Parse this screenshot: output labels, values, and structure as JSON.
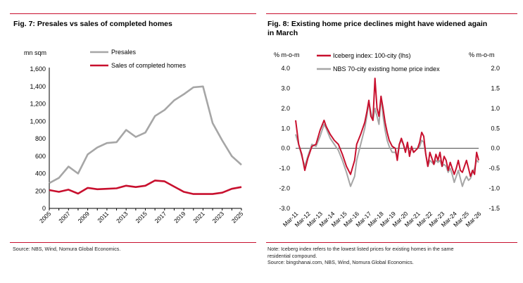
{
  "left": {
    "title": "Fig. 7: Presales vs sales of completed homes",
    "source": "Source: NBS, Wind, Nomura Global Economics."
  },
  "right": {
    "title_line1": "Fig. 8: Existing home price declines might have widened again",
    "title_line2": "in March",
    "note_line1": "Note: Iceberg index refers to the lowest listed prices for existing homes in the same",
    "note_line2": "residential compound.",
    "source": "Source: bingshanai.com, NBS, Wind, Nomura Global Economics."
  },
  "colors": {
    "red": "#c8102e",
    "gray": "#a6a6a6",
    "axis": "#000000"
  },
  "chart_data": [
    {
      "type": "line",
      "ylabel": "mn sqm",
      "ylim": [
        0,
        1600
      ],
      "yticks": [
        0,
        200,
        400,
        600,
        800,
        1000,
        1200,
        1400,
        1600
      ],
      "ytick_labels": [
        "0",
        "200",
        "400",
        "600",
        "800",
        "1,000",
        "1,200",
        "1,400",
        "1,600"
      ],
      "xlim": [
        2005,
        2025
      ],
      "xtick_labels": [
        "2005",
        "2007",
        "2009",
        "2011",
        "2013",
        "2015",
        "2017",
        "2019",
        "2021",
        "2023",
        "2025"
      ],
      "legend_position": "top-center",
      "series": [
        {
          "name": "Presales",
          "color": "#a6a6a6",
          "x": [
            2005,
            2006,
            2007,
            2008,
            2009,
            2010,
            2011,
            2012,
            2013,
            2014,
            2015,
            2016,
            2017,
            2018,
            2019,
            2020,
            2021,
            2022,
            2023,
            2024,
            2025
          ],
          "values": [
            290,
            350,
            480,
            400,
            620,
            700,
            750,
            760,
            900,
            820,
            870,
            1060,
            1130,
            1240,
            1310,
            1390,
            1400,
            980,
            780,
            600,
            500
          ]
        },
        {
          "name": "Sales of completed homes",
          "color": "#c8102e",
          "x": [
            2005,
            2006,
            2007,
            2008,
            2009,
            2010,
            2011,
            2012,
            2013,
            2014,
            2015,
            2016,
            2017,
            2018,
            2019,
            2020,
            2021,
            2022,
            2023,
            2024,
            2025
          ],
          "values": [
            210,
            190,
            215,
            170,
            235,
            220,
            225,
            230,
            260,
            245,
            260,
            320,
            310,
            250,
            190,
            165,
            165,
            165,
            180,
            225,
            245
          ]
        }
      ]
    },
    {
      "type": "line",
      "ylabel_left": "% m-o-m",
      "ylabel_right": "% m-o-m",
      "ylim_left": [
        -3,
        4
      ],
      "ylim_right": [
        -1.5,
        2
      ],
      "yticks_left_labels": [
        "-3.0",
        "-2.0",
        "-1.0",
        "0.0",
        "1.0",
        "2.0",
        "3.0",
        "4.0"
      ],
      "yticks_right_labels": [
        "-1.5",
        "-1.0",
        "-0.5",
        "0.0",
        "0.5",
        "1.0",
        "1.5",
        "2.0"
      ],
      "xtick_labels": [
        "Mar-11",
        "Mar-12",
        "Mar-13",
        "Mar-14",
        "Mar-15",
        "Mar-16",
        "Mar-17",
        "Mar-18",
        "Mar-19",
        "Mar-20",
        "Mar-21",
        "Mar-22",
        "Mar-23",
        "Mar-24",
        "Mar-25",
        "Mar-26"
      ],
      "legend_position": "top-center",
      "series": [
        {
          "name": "Iceberg index: 100-city (lhs)",
          "axis": "left",
          "color": "#c8102e",
          "x": [
            0,
            3,
            6,
            9,
            12,
            16,
            20,
            24,
            28,
            30,
            34,
            38,
            42,
            46,
            50,
            54,
            58,
            60,
            64,
            68,
            70,
            72,
            74,
            76,
            78,
            80,
            82,
            84,
            86,
            88,
            90,
            92,
            95,
            98,
            100,
            102,
            104,
            106,
            108,
            110,
            112,
            114,
            116,
            118,
            120,
            122,
            124,
            126,
            128,
            130,
            132,
            134,
            136,
            138,
            140,
            142,
            144,
            146,
            148,
            150,
            152,
            154,
            156,
            158,
            160,
            162,
            164,
            166,
            168,
            170,
            172,
            174,
            176,
            178,
            180
          ],
          "values": [
            1.4,
            0.2,
            -0.3,
            -1.1,
            -0.5,
            0.1,
            0.2,
            0.9,
            1.4,
            1.1,
            0.7,
            0.4,
            0.2,
            -0.3,
            -0.9,
            -1.3,
            -0.6,
            0.2,
            0.7,
            1.3,
            1.8,
            2.4,
            1.6,
            1.4,
            3.5,
            2.0,
            1.6,
            2.6,
            2.0,
            1.3,
            0.8,
            0.4,
            0.1,
            0.0,
            -0.6,
            0.2,
            0.5,
            0.2,
            -0.2,
            0.3,
            -0.4,
            0.1,
            -0.2,
            -0.1,
            0.0,
            0.3,
            0.8,
            0.6,
            -0.3,
            -0.9,
            -0.2,
            -0.5,
            -0.8,
            -0.3,
            -0.6,
            -0.2,
            -0.9,
            -0.4,
            -0.6,
            -1.1,
            -0.7,
            -1.0,
            -1.3,
            -1.0,
            -0.6,
            -1.1,
            -1.2,
            -0.9,
            -0.6,
            -1.0,
            -1.4,
            -1.1,
            -1.3,
            -0.2,
            -0.6
          ]
        },
        {
          "name": "NBS 70-city existing home price index",
          "axis": "right",
          "color": "#a6a6a6",
          "x": [
            0,
            3,
            6,
            9,
            12,
            16,
            20,
            24,
            28,
            30,
            34,
            38,
            42,
            46,
            50,
            54,
            58,
            60,
            64,
            68,
            70,
            72,
            74,
            76,
            78,
            80,
            82,
            84,
            86,
            88,
            90,
            92,
            95,
            98,
            100,
            102,
            104,
            106,
            108,
            110,
            112,
            114,
            116,
            118,
            120,
            122,
            124,
            126,
            128,
            130,
            132,
            134,
            136,
            138,
            140,
            142,
            144,
            146,
            148,
            150,
            152,
            154,
            156,
            158,
            160,
            162,
            164,
            166,
            168,
            170,
            172,
            174,
            176,
            178,
            180
          ],
          "values": [
            0.35,
            0.1,
            -0.2,
            -0.45,
            -0.2,
            0.1,
            0.05,
            0.3,
            0.6,
            0.5,
            0.25,
            0.1,
            -0.05,
            -0.3,
            -0.6,
            -0.95,
            -0.7,
            -0.3,
            0.1,
            0.5,
            0.8,
            1.15,
            0.9,
            0.7,
            1.0,
            0.8,
            0.6,
            1.3,
            0.8,
            0.45,
            0.2,
            0.05,
            -0.1,
            -0.1,
            -0.2,
            0.1,
            0.2,
            0.1,
            -0.05,
            0.05,
            -0.1,
            0.0,
            -0.1,
            -0.05,
            0.0,
            0.05,
            0.2,
            0.15,
            -0.15,
            -0.45,
            -0.3,
            -0.35,
            -0.4,
            -0.3,
            -0.35,
            -0.3,
            -0.45,
            -0.4,
            -0.45,
            -0.6,
            -0.5,
            -0.65,
            -0.85,
            -0.7,
            -0.55,
            -0.75,
            -0.95,
            -0.8,
            -0.7,
            -0.8,
            -0.75,
            -0.6,
            -0.5,
            -0.3,
            -0.35
          ]
        }
      ]
    }
  ]
}
